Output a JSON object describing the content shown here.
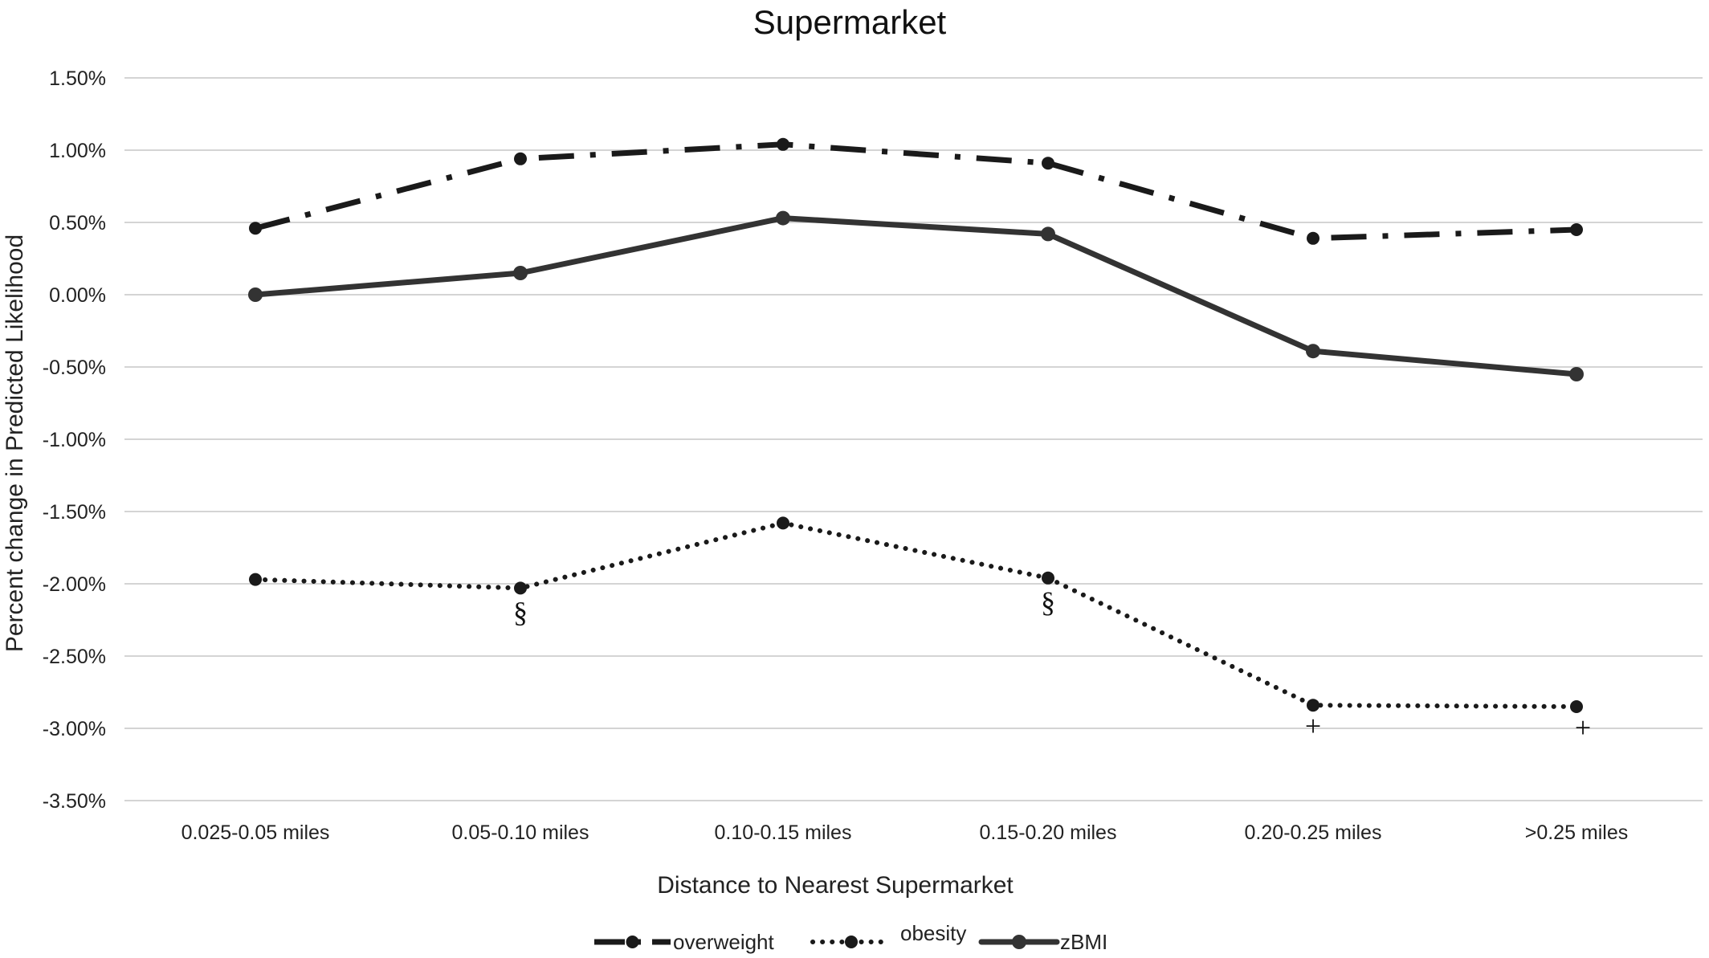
{
  "chart_data": {
    "type": "line",
    "title": "Supermarket",
    "xlabel": "Distance to Nearest Supermarket",
    "ylabel": "Percent change in Predicted Likelihood",
    "categories": [
      "0.025-0.05 miles",
      "0.05-0.10 miles",
      "0.10-0.15 miles",
      "0.15-0.20 miles",
      "0.20-0.25 miles",
      ">0.25 miles"
    ],
    "yticks": [
      "1.50%",
      "1.00%",
      "0.50%",
      "0.00%",
      "-0.50%",
      "-1.00%",
      "-1.50%",
      "-2.00%",
      "-2.50%",
      "-3.00%",
      "-3.50%"
    ],
    "ylim": [
      -3.5,
      1.5
    ],
    "grid": true,
    "legend_position": "bottom",
    "series": [
      {
        "name": "overweight",
        "style": "dash-dot",
        "values": [
          0.46,
          0.94,
          1.04,
          0.91,
          0.39,
          0.45
        ]
      },
      {
        "name": "obesity",
        "style": "dotted",
        "values": [
          -1.97,
          -2.03,
          -1.58,
          -1.96,
          -2.84,
          -2.85
        ]
      },
      {
        "name": "zBMI",
        "style": "solid",
        "values": [
          0.0,
          0.15,
          0.53,
          0.42,
          -0.39,
          -0.55
        ]
      }
    ],
    "annotations": [
      {
        "series": "obesity",
        "index": 1,
        "text": "§"
      },
      {
        "series": "obesity",
        "index": 3,
        "text": "§"
      },
      {
        "series": "obesity",
        "index": 4,
        "text": "+"
      },
      {
        "series": "obesity",
        "index": 5,
        "text": "+"
      }
    ],
    "colors": {
      "line": "#1a1a1a",
      "zbmi": "#333333",
      "grid": "#d4d4d4"
    }
  }
}
